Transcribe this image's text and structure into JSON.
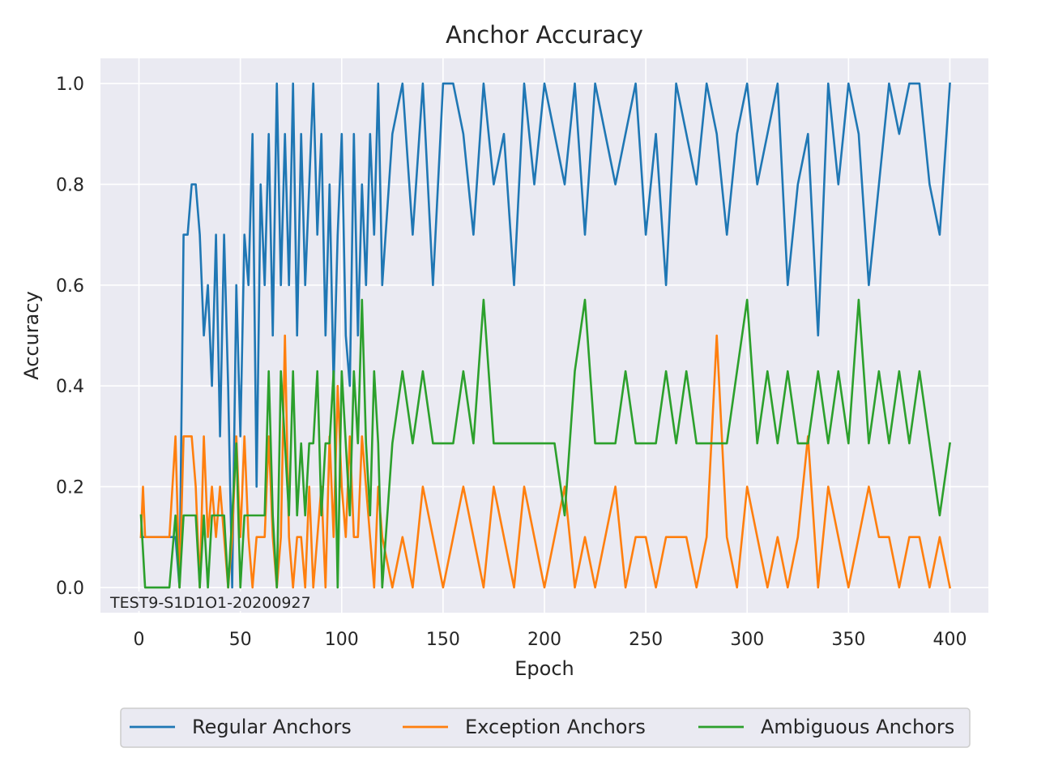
{
  "chart_data": {
    "type": "line",
    "title": "Anchor Accuracy",
    "xlabel": "Epoch",
    "ylabel": "Accuracy",
    "xlim": [
      -19,
      419
    ],
    "ylim": [
      -0.05,
      1.05
    ],
    "xticks": [
      0,
      50,
      100,
      150,
      200,
      250,
      300,
      350,
      400
    ],
    "xtick_labels": [
      "0",
      "50",
      "100",
      "150",
      "200",
      "250",
      "300",
      "350",
      "400"
    ],
    "yticks": [
      0.0,
      0.2,
      0.4,
      0.6,
      0.8,
      1.0
    ],
    "ytick_labels": [
      "0.0",
      "0.2",
      "0.4",
      "0.6",
      "0.8",
      "1.0"
    ],
    "grid": true,
    "legend_position": "bottom-center, below axes",
    "annotation": "TEST9-S1D1O1-20200927",
    "background_color": "#eaeaf2",
    "series": [
      {
        "name": "Regular Anchors",
        "color": "#1f77b4",
        "x": [
          1,
          5,
          10,
          15,
          18,
          20,
          22,
          24,
          26,
          28,
          30,
          32,
          34,
          36,
          38,
          40,
          42,
          44,
          46,
          48,
          50,
          52,
          54,
          56,
          58,
          60,
          62,
          64,
          66,
          68,
          70,
          72,
          74,
          76,
          78,
          80,
          82,
          84,
          86,
          88,
          90,
          92,
          94,
          96,
          98,
          100,
          102,
          104,
          106,
          108,
          110,
          112,
          114,
          116,
          118,
          120,
          125,
          130,
          135,
          140,
          145,
          150,
          155,
          160,
          165,
          170,
          175,
          180,
          185,
          190,
          195,
          200,
          205,
          210,
          215,
          220,
          225,
          230,
          235,
          240,
          245,
          250,
          255,
          260,
          265,
          270,
          275,
          280,
          285,
          290,
          295,
          300,
          305,
          310,
          315,
          320,
          325,
          330,
          335,
          340,
          345,
          350,
          355,
          360,
          365,
          370,
          375,
          380,
          385,
          390,
          395,
          400
        ],
        "values": [
          0.1,
          0.1,
          0.1,
          0.1,
          0.1,
          0.0,
          0.7,
          0.7,
          0.8,
          0.8,
          0.7,
          0.5,
          0.6,
          0.4,
          0.7,
          0.3,
          0.7,
          0.4,
          0.0,
          0.6,
          0.3,
          0.7,
          0.6,
          0.9,
          0.2,
          0.8,
          0.6,
          0.9,
          0.5,
          1.0,
          0.6,
          0.9,
          0.6,
          1.0,
          0.5,
          0.9,
          0.6,
          0.8,
          1.0,
          0.7,
          0.9,
          0.5,
          0.8,
          0.4,
          0.7,
          0.9,
          0.5,
          0.4,
          0.9,
          0.5,
          0.8,
          0.6,
          0.9,
          0.7,
          1.0,
          0.6,
          0.9,
          1.0,
          0.7,
          1.0,
          0.6,
          1.0,
          1.0,
          0.9,
          0.7,
          1.0,
          0.8,
          0.9,
          0.6,
          1.0,
          0.8,
          1.0,
          0.9,
          0.8,
          1.0,
          0.7,
          1.0,
          0.9,
          0.8,
          0.9,
          1.0,
          0.7,
          0.9,
          0.6,
          1.0,
          0.9,
          0.8,
          1.0,
          0.9,
          0.7,
          0.9,
          1.0,
          0.8,
          0.9,
          1.0,
          0.6,
          0.8,
          0.9,
          0.5,
          1.0,
          0.8,
          1.0,
          0.9,
          0.6,
          0.8,
          1.0,
          0.9,
          1.0,
          1.0,
          0.8,
          0.7,
          1.0
        ]
      },
      {
        "name": "Exception Anchors",
        "color": "#ff7f0e",
        "x": [
          1,
          2,
          3,
          5,
          10,
          15,
          18,
          20,
          22,
          24,
          26,
          28,
          30,
          32,
          34,
          36,
          38,
          40,
          42,
          44,
          46,
          48,
          50,
          52,
          54,
          56,
          58,
          60,
          62,
          64,
          66,
          68,
          70,
          72,
          74,
          76,
          78,
          80,
          82,
          84,
          86,
          88,
          90,
          92,
          94,
          96,
          98,
          100,
          102,
          104,
          106,
          108,
          110,
          112,
          114,
          116,
          118,
          120,
          125,
          130,
          135,
          140,
          145,
          150,
          155,
          160,
          165,
          170,
          175,
          180,
          185,
          190,
          195,
          200,
          205,
          210,
          215,
          220,
          225,
          230,
          235,
          240,
          245,
          250,
          255,
          260,
          265,
          270,
          275,
          280,
          285,
          290,
          295,
          300,
          305,
          310,
          315,
          320,
          325,
          330,
          335,
          340,
          345,
          350,
          355,
          360,
          365,
          370,
          375,
          380,
          385,
          390,
          395,
          400
        ],
        "values": [
          0.1,
          0.2,
          0.1,
          0.1,
          0.1,
          0.1,
          0.3,
          0.0,
          0.3,
          0.3,
          0.3,
          0.2,
          0.0,
          0.3,
          0.1,
          0.2,
          0.1,
          0.2,
          0.1,
          0.0,
          0.1,
          0.3,
          0.1,
          0.3,
          0.1,
          0.0,
          0.1,
          0.1,
          0.1,
          0.3,
          0.1,
          0.0,
          0.1,
          0.5,
          0.1,
          0.0,
          0.1,
          0.1,
          0.0,
          0.2,
          0.0,
          0.1,
          0.2,
          0.0,
          0.3,
          0.1,
          0.4,
          0.2,
          0.1,
          0.3,
          0.1,
          0.1,
          0.3,
          0.2,
          0.1,
          0.0,
          0.2,
          0.1,
          0.0,
          0.1,
          0.0,
          0.2,
          0.1,
          0.0,
          0.1,
          0.2,
          0.1,
          0.0,
          0.2,
          0.1,
          0.0,
          0.2,
          0.1,
          0.0,
          0.1,
          0.2,
          0.0,
          0.1,
          0.0,
          0.1,
          0.2,
          0.0,
          0.1,
          0.1,
          0.0,
          0.1,
          0.1,
          0.1,
          0.0,
          0.1,
          0.5,
          0.1,
          0.0,
          0.2,
          0.1,
          0.0,
          0.1,
          0.0,
          0.1,
          0.3,
          0.0,
          0.2,
          0.1,
          0.0,
          0.1,
          0.2,
          0.1,
          0.1,
          0.0,
          0.1,
          0.1,
          0.0,
          0.1,
          0.0
        ]
      },
      {
        "name": "Ambiguous Anchors",
        "color": "#2ca02c",
        "x": [
          1,
          3,
          5,
          10,
          15,
          18,
          20,
          22,
          24,
          26,
          28,
          30,
          32,
          34,
          36,
          38,
          40,
          42,
          44,
          46,
          48,
          50,
          52,
          54,
          56,
          58,
          60,
          62,
          64,
          66,
          68,
          70,
          72,
          74,
          76,
          78,
          80,
          82,
          84,
          86,
          88,
          90,
          92,
          94,
          96,
          98,
          100,
          102,
          104,
          106,
          108,
          110,
          112,
          114,
          116,
          118,
          120,
          125,
          130,
          135,
          140,
          145,
          150,
          155,
          160,
          165,
          170,
          175,
          180,
          185,
          190,
          195,
          200,
          205,
          210,
          215,
          220,
          225,
          230,
          235,
          240,
          245,
          250,
          255,
          260,
          265,
          270,
          275,
          280,
          285,
          290,
          295,
          300,
          305,
          310,
          315,
          320,
          325,
          330,
          335,
          340,
          345,
          350,
          355,
          360,
          365,
          370,
          375,
          380,
          385,
          390,
          395,
          400
        ],
        "values": [
          0.143,
          0.0,
          0.0,
          0.0,
          0.0,
          0.143,
          0.0,
          0.143,
          0.143,
          0.143,
          0.143,
          0.0,
          0.143,
          0.0,
          0.143,
          0.143,
          0.143,
          0.143,
          0.0,
          0.143,
          0.286,
          0.0,
          0.143,
          0.143,
          0.143,
          0.143,
          0.143,
          0.143,
          0.429,
          0.143,
          0.0,
          0.429,
          0.286,
          0.143,
          0.429,
          0.143,
          0.286,
          0.143,
          0.286,
          0.286,
          0.429,
          0.143,
          0.286,
          0.286,
          0.429,
          0.0,
          0.429,
          0.286,
          0.143,
          0.429,
          0.286,
          0.571,
          0.286,
          0.143,
          0.429,
          0.286,
          0.0,
          0.286,
          0.429,
          0.286,
          0.429,
          0.286,
          0.286,
          0.286,
          0.429,
          0.286,
          0.571,
          0.286,
          0.286,
          0.286,
          0.286,
          0.286,
          0.286,
          0.286,
          0.143,
          0.429,
          0.571,
          0.286,
          0.286,
          0.286,
          0.429,
          0.286,
          0.286,
          0.286,
          0.429,
          0.286,
          0.429,
          0.286,
          0.286,
          0.286,
          0.286,
          0.429,
          0.571,
          0.286,
          0.429,
          0.286,
          0.429,
          0.286,
          0.286,
          0.429,
          0.286,
          0.429,
          0.286,
          0.571,
          0.286,
          0.429,
          0.286,
          0.429,
          0.286,
          0.429,
          0.286,
          0.143,
          0.286
        ]
      }
    ]
  }
}
